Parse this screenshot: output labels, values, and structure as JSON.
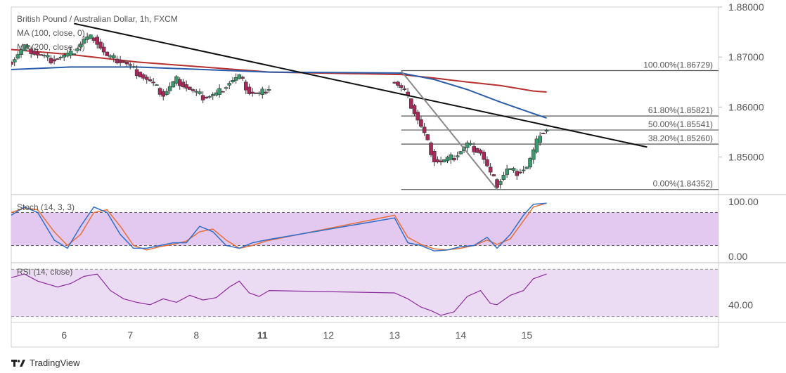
{
  "chart_data": [
    {
      "type": "line",
      "pane": "price",
      "title": "British Pound / Australian Dollar, 1h, FXCM",
      "indicators": [
        "MA (100, close, 0)",
        "MA (200, close, 0)"
      ],
      "ylim": [
        1.8425,
        1.88
      ],
      "y_ticks": [
        "1.88000",
        "1.87000",
        "1.86000",
        "1.85000"
      ],
      "x_ticks": [
        "6",
        "7",
        "8",
        "11",
        "12",
        "13",
        "14",
        "15"
      ],
      "x_range": [
        5.1,
        15.8
      ],
      "close_series": {
        "x": [
          5.1,
          5.3,
          5.5,
          5.7,
          6.0,
          6.2,
          6.35,
          6.55,
          6.8,
          7.0,
          7.2,
          7.4,
          7.6,
          7.85,
          8.0,
          8.2,
          8.4,
          8.55,
          8.7,
          8.85,
          9.0,
          10.9,
          11.05,
          11.2,
          11.35,
          11.5,
          11.6,
          11.8,
          12.0,
          12.2,
          12.35,
          12.45,
          12.6,
          12.75,
          12.9,
          13.0,
          13.1,
          13.2
        ],
        "values": [
          1.869,
          1.872,
          1.8705,
          1.8695,
          1.8705,
          1.8735,
          1.874,
          1.87,
          1.869,
          1.867,
          1.865,
          1.8625,
          1.8655,
          1.863,
          1.862,
          1.8625,
          1.865,
          1.866,
          1.863,
          1.8625,
          1.864,
          1.865,
          1.863,
          1.859,
          1.8545,
          1.8495,
          1.849,
          1.85,
          1.8525,
          1.851,
          1.8465,
          1.8445,
          1.8475,
          1.847,
          1.848,
          1.851,
          1.8548,
          1.8555
        ]
      },
      "ma100": {
        "x": [
          5.1,
          6.0,
          7.0,
          8.0,
          9.0,
          11.0,
          11.5,
          12.0,
          12.5,
          13.0,
          13.2
        ],
        "values": [
          1.8675,
          1.868,
          1.868,
          1.8675,
          1.867,
          1.8668,
          1.8655,
          1.8635,
          1.861,
          1.8587,
          1.8578
        ]
      },
      "ma200": {
        "x": [
          5.1,
          6.0,
          7.0,
          8.0,
          9.0,
          11.0,
          11.5,
          12.0,
          12.5,
          13.0,
          13.2
        ],
        "values": [
          1.8715,
          1.8705,
          1.869,
          1.868,
          1.867,
          1.8665,
          1.8658,
          1.865,
          1.8643,
          1.8632,
          1.863
        ]
      },
      "trendlines": [
        {
          "x": [
            6.05,
            14.72
          ],
          "values": [
            1.8767,
            1.852
          ]
        },
        {
          "x": [
            11.0,
            12.45
          ],
          "values": [
            1.8672,
            1.8435
          ]
        }
      ],
      "fib_levels": [
        {
          "label": "100.00%(1.86729)",
          "value": 1.86729
        },
        {
          "label": "61.80%(1.85821)",
          "value": 1.85821
        },
        {
          "label": "50.00%(1.85541)",
          "value": 1.85541
        },
        {
          "label": "38.20%(1.85260)",
          "value": 1.8526
        },
        {
          "label": "0.00%(1.84352)",
          "value": 1.84352
        }
      ],
      "colors": {
        "ma100": "#2a5caa",
        "ma200": "#b7302f",
        "trend": "#111111",
        "fib": "#555555",
        "up": "#3a9a6e",
        "down": "#a8285a"
      }
    },
    {
      "type": "line",
      "pane": "stochastic",
      "title": "Stoch (14, 3, 3)",
      "ylim": [
        -10,
        110
      ],
      "band": [
        20,
        80
      ],
      "y_ticks": [
        "100.00",
        "0.00"
      ],
      "k": {
        "x": [
          5.1,
          5.3,
          5.5,
          5.75,
          5.95,
          6.15,
          6.35,
          6.55,
          6.75,
          6.95,
          7.15,
          7.35,
          7.55,
          7.75,
          7.95,
          8.15,
          8.35,
          8.55,
          8.75,
          8.95,
          10.9,
          11.1,
          11.3,
          11.5,
          11.7,
          11.9,
          12.1,
          12.3,
          12.45,
          12.65,
          12.85,
          13.0,
          13.2
        ],
        "values": [
          75,
          90,
          80,
          30,
          15,
          55,
          90,
          80,
          40,
          15,
          15,
          20,
          25,
          25,
          55,
          45,
          20,
          15,
          25,
          30,
          70,
          25,
          20,
          10,
          12,
          18,
          20,
          35,
          15,
          40,
          75,
          95,
          97
        ]
      },
      "d": {
        "x": [
          5.1,
          5.3,
          5.5,
          5.75,
          5.95,
          6.15,
          6.35,
          6.55,
          6.75,
          6.95,
          7.15,
          7.35,
          7.55,
          7.75,
          7.95,
          8.15,
          8.35,
          8.55,
          8.75,
          8.95,
          10.9,
          11.1,
          11.3,
          11.5,
          11.7,
          11.9,
          12.1,
          12.3,
          12.45,
          12.65,
          12.85,
          13.0,
          13.2
        ],
        "values": [
          80,
          88,
          85,
          45,
          20,
          40,
          80,
          85,
          55,
          20,
          12,
          18,
          22,
          28,
          45,
          50,
          30,
          15,
          20,
          28,
          75,
          35,
          22,
          14,
          12,
          15,
          20,
          30,
          22,
          32,
          65,
          90,
          97
        ]
      },
      "colors": {
        "k": "#2f6fc9",
        "d": "#e86f3a",
        "band_fill": "#e3c8f0"
      }
    },
    {
      "type": "line",
      "pane": "rsi",
      "title": "RSI (14, close)",
      "ylim": [
        25,
        75
      ],
      "band": [
        30,
        70
      ],
      "y_ticks": [
        "40.00"
      ],
      "values_x": [
        5.1,
        5.3,
        5.5,
        5.8,
        6.0,
        6.2,
        6.4,
        6.6,
        6.8,
        7.0,
        7.2,
        7.4,
        7.6,
        7.8,
        8.0,
        8.2,
        8.4,
        8.55,
        8.7,
        8.85,
        9.0,
        10.9,
        11.1,
        11.3,
        11.45,
        11.6,
        11.8,
        12.0,
        12.2,
        12.35,
        12.45,
        12.65,
        12.85,
        13.0,
        13.2
      ],
      "values": [
        63,
        66,
        60,
        55,
        58,
        64,
        66,
        52,
        45,
        42,
        40,
        45,
        42,
        48,
        44,
        46,
        55,
        60,
        50,
        47,
        52,
        50,
        45,
        38,
        35,
        31,
        34,
        47,
        52,
        41,
        40,
        48,
        52,
        62,
        66
      ],
      "colors": {
        "line": "#8a2a9e",
        "band_fill": "#ecdcf3"
      }
    }
  ],
  "branding": {
    "name": "TradingView",
    "logo_icon": "tradingview-logo-icon"
  }
}
